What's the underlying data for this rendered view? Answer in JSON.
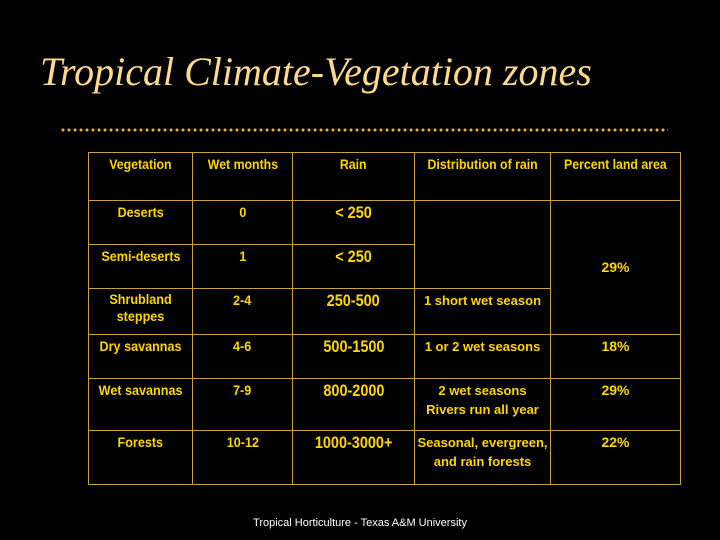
{
  "title": "Tropical Climate-Vegetation zones",
  "table": {
    "headers": [
      "Vegetation",
      "Wet months",
      "Rain",
      "Distribution of rain",
      "Percent  land area"
    ],
    "rows": [
      {
        "vegetation": "Deserts",
        "wet_months": "0",
        "rain": "< 250"
      },
      {
        "vegetation": "Semi-deserts",
        "wet_months": "1",
        "rain": "< 250"
      },
      {
        "vegetation": "Shrubland steppes",
        "wet_months": "2-4",
        "rain": "250-500",
        "distribution": "1 short wet season"
      },
      {
        "vegetation": "Dry savannas",
        "wet_months": "4-6",
        "rain": "500-1500",
        "distribution": "1 or 2 wet seasons",
        "percent": "18%"
      },
      {
        "vegetation": "Wet savannas",
        "wet_months": "7-9",
        "rain": "800-2000",
        "distribution": "2 wet seasons Rivers run all year",
        "percent": "29%"
      },
      {
        "vegetation": "Forests",
        "wet_months": "10-12",
        "rain": "1000-3000+",
        "distribution": "Seasonal, evergreen, and rain forests",
        "percent": "22%"
      }
    ],
    "merged_percent_top": "29%"
  },
  "footer": "Tropical Horticulture - Texas A&M University",
  "colors": {
    "background": "#000000",
    "title": "#ffd98a",
    "table_text": "#ffd400",
    "border": "#c8a040",
    "dots": "#f0b030"
  }
}
